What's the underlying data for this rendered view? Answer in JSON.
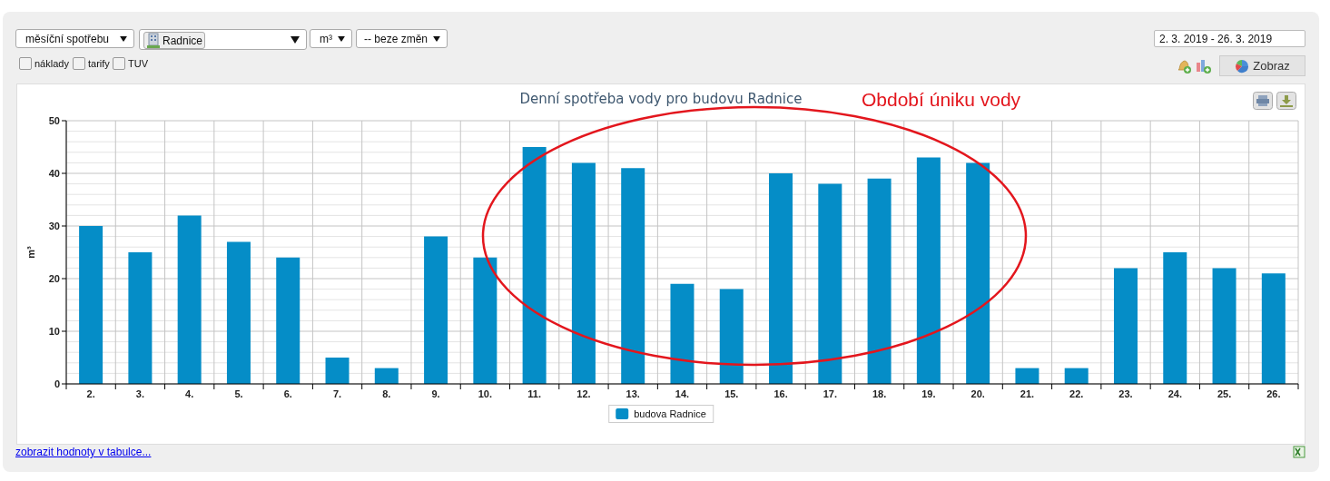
{
  "chart_data": {
    "type": "bar",
    "title": "Denní spotřeba vody pro budovu Radnice",
    "ylabel": "m³",
    "categories": [
      "2.",
      "3.",
      "4.",
      "5.",
      "6.",
      "7.",
      "8.",
      "9.",
      "10.",
      "11.",
      "12.",
      "13.",
      "14.",
      "15.",
      "16.",
      "17.",
      "18.",
      "19.",
      "20.",
      "21.",
      "22.",
      "23.",
      "24.",
      "25.",
      "26."
    ],
    "series": [
      {
        "name": "budova Radnice",
        "color": "#058dc7",
        "values": [
          30,
          25,
          32,
          27,
          24,
          5,
          3,
          28,
          24,
          45,
          42,
          41,
          19,
          18,
          40,
          38,
          39,
          43,
          42,
          3,
          3,
          22,
          25,
          22,
          21
        ]
      }
    ],
    "ylim": [
      0,
      50
    ],
    "yticks": [
      0,
      {
        "value": 2,
        "label": null
      },
      {
        "value": 4,
        "label": null
      },
      {
        "value": 6,
        "label": null
      },
      {
        "value": 8,
        "label": null
      },
      10,
      {
        "value": 12,
        "label": null
      },
      {
        "value": 14,
        "label": null
      },
      {
        "value": 16,
        "label": null
      },
      {
        "value": 18,
        "label": null
      },
      20,
      {
        "value": 22,
        "label": null
      },
      {
        "value": 24,
        "label": null
      },
      {
        "value": 26,
        "label": null
      },
      {
        "value": 28,
        "label": null
      },
      30,
      {
        "value": 32,
        "label": null
      },
      {
        "value": 34,
        "label": null
      },
      {
        "value": 36,
        "label": null
      },
      {
        "value": 38,
        "label": null
      },
      40,
      {
        "value": 42,
        "label": null
      },
      {
        "value": 44,
        "label": null
      },
      {
        "value": 46,
        "label": null
      },
      {
        "value": 48,
        "label": null
      },
      50
    ],
    "grid": true,
    "legend": "bottom",
    "annotations": [
      "měsíční spotřebu",
      "Radnice",
      "m³",
      "-- beze změn",
      "náklady",
      "tarify",
      "TUV",
      "2. 3. 2019 - 26. 3. 2019",
      "Zobraz",
      "Období úniku vody",
      "zobrazit hodnoty v tabulce..."
    ]
  }
}
